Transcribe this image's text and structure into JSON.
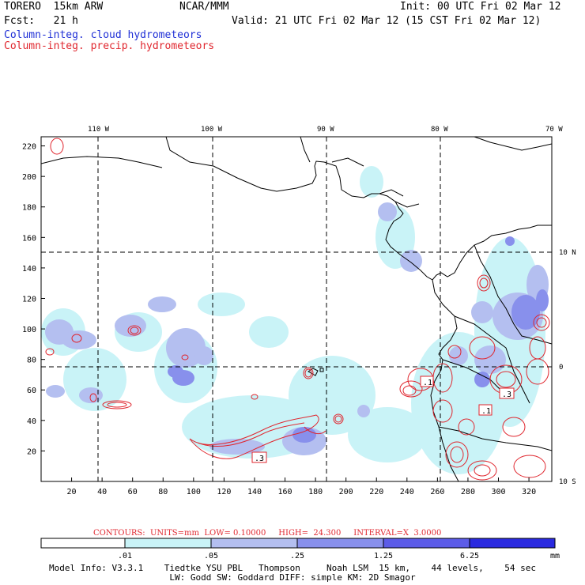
{
  "header": {
    "model": "TORERO  15km ARW",
    "org": "NCAR/MMM",
    "init": "Init: 00 UTC Fri 02 Mar 12",
    "fcst": "Fcst:   21 h",
    "valid": "Valid: 21 UTC Fri 02 Mar 12 (15 CST Fri 02 Mar 12)",
    "field1": "Column-integ. cloud hydrometeors",
    "field2": "Column-integ. precip. hydrometeors"
  },
  "colors": {
    "cloud_label": "#1f2fd6",
    "precip_label": "#e0262e",
    "contour": "#e0262e",
    "coast": "#000000",
    "shade_levels": [
      "#ffffff",
      "#c9f3f7",
      "#b4bff0",
      "#8890ec",
      "#5c5ce8",
      "#2a2ae0"
    ]
  },
  "map": {
    "lon_labels": [
      "110 W",
      "100 W",
      "90 W",
      "80 W",
      "70 W"
    ],
    "lat_labels": [
      "10 N",
      "0",
      "10 S"
    ],
    "x_ticks": [
      "20",
      "40",
      "60",
      "80",
      "100",
      "120",
      "140",
      "160",
      "180",
      "200",
      "220",
      "240",
      "260",
      "280",
      "300",
      "320"
    ],
    "y_ticks": [
      "220",
      "200",
      "180",
      "160",
      "140",
      "120",
      "100",
      "80",
      "60",
      "40",
      "20"
    ],
    "box_labels": [
      ".3",
      ".1",
      ".3",
      ".1"
    ]
  },
  "legend": {
    "contours": "CONTOURS:  UNITS=mm  LOW= 0.10000     HIGH=  24.300     INTERVAL=X  3.0000",
    "ticks": [
      ".01",
      ".05",
      ".25",
      "1.25",
      "6.25"
    ],
    "unit": "mm"
  },
  "footer": {
    "line1": "Model Info: V3.3.1    Tiedtke YSU PBL   Thompson     Noah LSM  15 km,    44 levels,    54 sec",
    "line2": "LW: Godd SW: Goddard DIFF: simple KM: 2D Smagor"
  }
}
